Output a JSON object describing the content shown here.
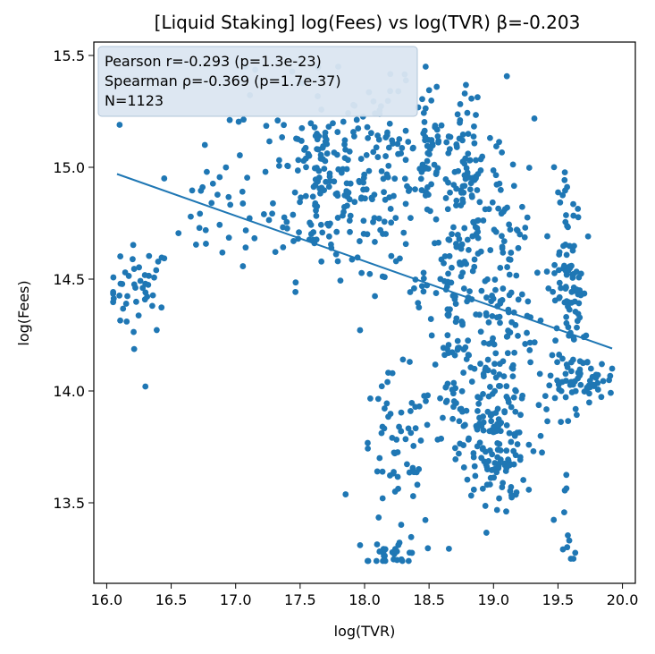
{
  "chart_data": {
    "type": "scatter",
    "title": "[Liquid Staking] log(Fees) vs log(TVR)  β=-0.203",
    "xlabel": "log(TVR)",
    "ylabel": "log(Fees)",
    "xlim": [
      15.9,
      20.1
    ],
    "ylim": [
      13.14,
      15.56
    ],
    "xticks": [
      "16.0",
      "16.5",
      "17.0",
      "17.5",
      "18.0",
      "18.5",
      "19.0",
      "19.5",
      "20.0"
    ],
    "yticks": [
      "13.5",
      "14.0",
      "14.5",
      "15.0",
      "15.5"
    ],
    "grid": false,
    "point_color": "#1f77b4",
    "line_color": "#1f77b4",
    "regression_line": {
      "x": [
        16.08,
        19.92
      ],
      "y": [
        14.97,
        14.19
      ]
    },
    "stats_box": {
      "lines": [
        "Pearson r=-0.293 (p=1.3e-23)",
        "Spearman ρ=-0.369 (p=1.7e-37)",
        "N=1123"
      ],
      "placement": "top-left"
    },
    "clusters": [
      {
        "cx": 16.25,
        "cy": 14.45,
        "sx": 0.12,
        "sy": 0.1,
        "n": 45
      },
      {
        "cx": 16.9,
        "cy": 14.8,
        "sx": 0.22,
        "sy": 0.12,
        "n": 35
      },
      {
        "cx": 17.65,
        "cy": 14.95,
        "sx": 0.18,
        "sy": 0.22,
        "n": 150
      },
      {
        "cx": 18.15,
        "cy": 14.95,
        "sx": 0.18,
        "sy": 0.2,
        "n": 110
      },
      {
        "cx": 18.5,
        "cy": 15.1,
        "sx": 0.06,
        "sy": 0.2,
        "n": 40
      },
      {
        "cx": 18.25,
        "cy": 13.7,
        "sx": 0.15,
        "sy": 0.18,
        "n": 60
      },
      {
        "cx": 18.25,
        "cy": 13.27,
        "sx": 0.1,
        "sy": 0.04,
        "n": 30
      },
      {
        "cx": 18.7,
        "cy": 14.3,
        "sx": 0.08,
        "sy": 0.25,
        "n": 90
      },
      {
        "cx": 18.8,
        "cy": 14.9,
        "sx": 0.15,
        "sy": 0.25,
        "n": 120
      },
      {
        "cx": 19.0,
        "cy": 14.1,
        "sx": 0.12,
        "sy": 0.3,
        "n": 130
      },
      {
        "cx": 19.0,
        "cy": 13.7,
        "sx": 0.12,
        "sy": 0.15,
        "n": 80
      },
      {
        "cx": 19.15,
        "cy": 14.6,
        "sx": 0.1,
        "sy": 0.3,
        "n": 40
      },
      {
        "cx": 19.55,
        "cy": 14.45,
        "sx": 0.07,
        "sy": 0.2,
        "n": 60
      },
      {
        "cx": 19.7,
        "cy": 14.05,
        "sx": 0.12,
        "sy": 0.05,
        "n": 50
      },
      {
        "cx": 19.65,
        "cy": 14.4,
        "sx": 0.06,
        "sy": 0.1,
        "n": 30
      },
      {
        "cx": 19.58,
        "cy": 13.4,
        "sx": 0.03,
        "sy": 0.15,
        "n": 10
      },
      {
        "cx": 19.55,
        "cy": 14.9,
        "sx": 0.04,
        "sy": 0.08,
        "n": 10
      },
      {
        "cx": 19.4,
        "cy": 13.9,
        "sx": 0.1,
        "sy": 0.08,
        "n": 15
      },
      {
        "cx": 18.4,
        "cy": 14.45,
        "sx": 0.05,
        "sy": 0.05,
        "n": 10
      },
      {
        "cx": 17.2,
        "cy": 15.25,
        "sx": 0.2,
        "sy": 0.12,
        "n": 8
      }
    ],
    "outlier_points": [
      {
        "x": 16.1,
        "y": 15.19
      },
      {
        "x": 16.3,
        "y": 14.02
      },
      {
        "x": 18.35,
        "y": 14.13
      },
      {
        "x": 19.92,
        "y": 14.1
      },
      {
        "x": 19.6,
        "y": 13.25
      },
      {
        "x": 19.62,
        "y": 13.25
      }
    ]
  }
}
